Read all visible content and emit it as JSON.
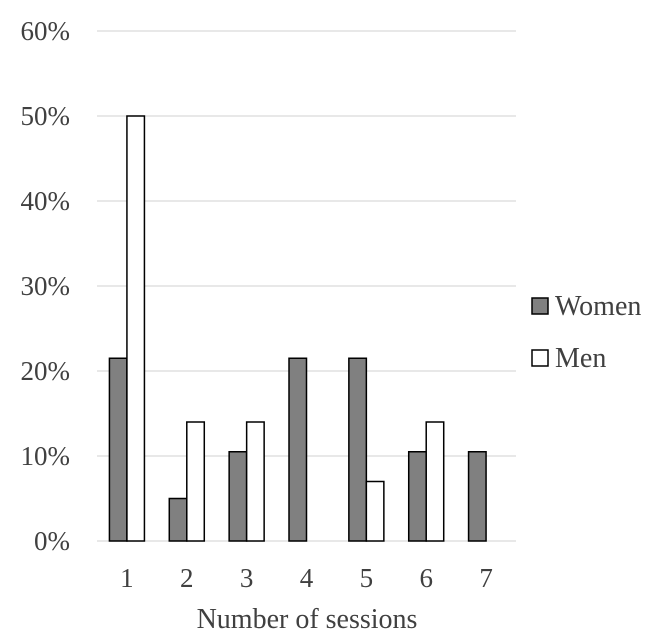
{
  "chart_data": {
    "type": "bar",
    "xlabel": "Number of sessions",
    "ylabel": "",
    "categories": [
      "1",
      "2",
      "3",
      "4",
      "5",
      "6",
      "7"
    ],
    "series": [
      {
        "name": "Women",
        "values": [
          21.5,
          5,
          10.5,
          21.5,
          21.5,
          10.5,
          10.5
        ],
        "color": "#808080"
      },
      {
        "name": "Men",
        "values": [
          50,
          14,
          14,
          0,
          7,
          14,
          0
        ],
        "color": "#ffffff"
      }
    ],
    "y_ticks": [
      "0%",
      "10%",
      "20%",
      "30%",
      "40%",
      "50%",
      "60%"
    ],
    "ylim": [
      0,
      60
    ],
    "grid": true,
    "legend_position": "right",
    "colors": {
      "gridline": "#d9d9d9",
      "bar_stroke": "#000000",
      "text": "#404040"
    }
  }
}
